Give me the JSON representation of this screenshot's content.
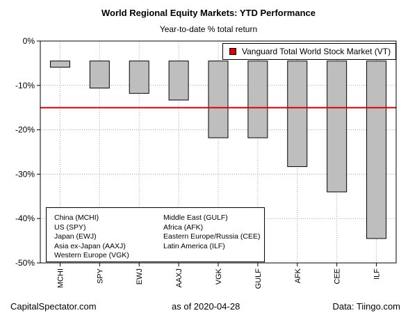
{
  "header": {
    "title": "World Regional Equity Markets: YTD Performance",
    "subtitle": "Year-to-date % total return"
  },
  "reference_legend": {
    "label": "Vanguard Total World Stock Market (VT)",
    "color": "#e00000"
  },
  "name_legend": {
    "column1": [
      "China (MCHI)",
      "US (SPY)",
      "Japan (EWJ)",
      "Asia ex-Japan (AAXJ)",
      "Western Europe (VGK)"
    ],
    "column2": [
      "Middle East (GULF)",
      "Africa (AFK)",
      "Eastern Europe/Russia (CEE)",
      "Latin America (ILF)"
    ]
  },
  "footer": {
    "source_site": "CapitalSpectator.com",
    "as_of": "as of  2020-04-28",
    "data_source": "Data: Tiingo.com"
  },
  "chart_data": {
    "type": "bar",
    "title": "World Regional Equity Markets: YTD Performance",
    "subtitle": "Year-to-date % total return",
    "xlabel": "",
    "ylabel": "",
    "categories": [
      "MCHI",
      "SPY",
      "EWJ",
      "AAXJ",
      "VGK",
      "GULF",
      "AFK",
      "CEE",
      "ILF"
    ],
    "values": [
      -5.9,
      -10.6,
      -11.8,
      -13.3,
      -21.8,
      -21.8,
      -28.3,
      -34.0,
      -44.5
    ],
    "ylim": [
      -50,
      0
    ],
    "yticks": [
      0,
      -10,
      -20,
      -30,
      -40,
      -50
    ],
    "ytick_labels": [
      "0%",
      "-10%",
      "-20%",
      "-30%",
      "-40%",
      "-50%"
    ],
    "bar_baseline": -4.5,
    "grid": true,
    "bar_color": "#bebebe",
    "reference_line": {
      "name": "Vanguard Total World Stock Market (VT)",
      "value": -15.0,
      "color": "#e00000"
    },
    "legend_position": "top-right"
  }
}
